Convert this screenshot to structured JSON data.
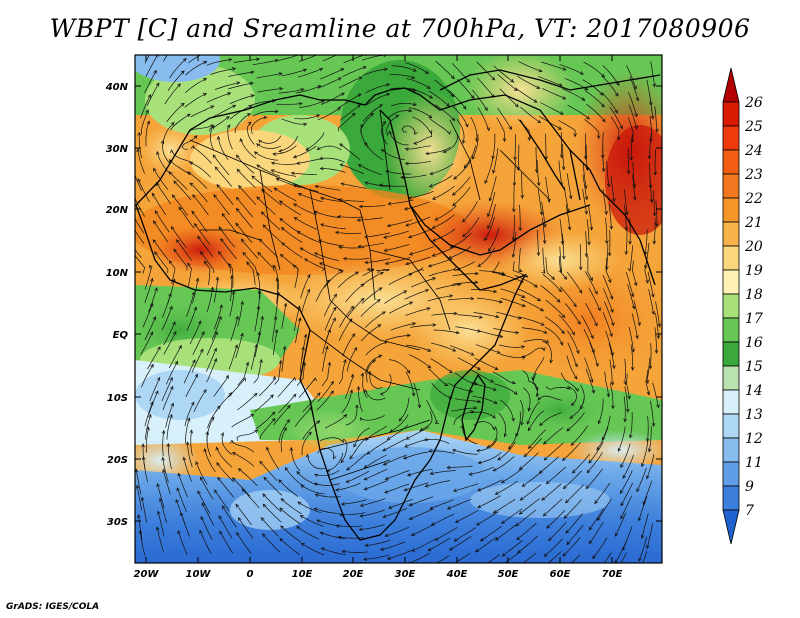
{
  "title": "WBPT [C] and Sreamline at 700hPa, VT: 2017080906",
  "footer": "GrADS: IGES/COLA",
  "map": {
    "variable": "wet-bulb potential temperature",
    "level": "700hPa",
    "domain_lon": [
      -22,
      80
    ],
    "domain_lat": [
      -37,
      45
    ],
    "lat_ticks": [
      "40N",
      "30N",
      "20N",
      "10N",
      "EQ",
      "10S",
      "20S",
      "30S"
    ],
    "lon_ticks": [
      "20W",
      "10W",
      "0",
      "10E",
      "20E",
      "30E",
      "40E",
      "50E",
      "60E",
      "70E"
    ]
  },
  "colorbar": {
    "labels": [
      "26",
      "25",
      "24",
      "23",
      "22",
      "21",
      "20",
      "19",
      "18",
      "17",
      "16",
      "15",
      "14",
      "13",
      "12",
      "11",
      "9",
      "7"
    ],
    "colors": [
      "#b30000",
      "#d91a00",
      "#f03a0c",
      "#f25f14",
      "#f2771e",
      "#f59629",
      "#f7b24a",
      "#fad77d",
      "#fef3b5",
      "#a8e07a",
      "#66c755",
      "#3aa83a",
      "#b9e2b0",
      "#d7f0fa",
      "#aed7f5",
      "#88bcef",
      "#5f9ee6",
      "#3c7edb",
      "#1f62cf"
    ]
  }
}
